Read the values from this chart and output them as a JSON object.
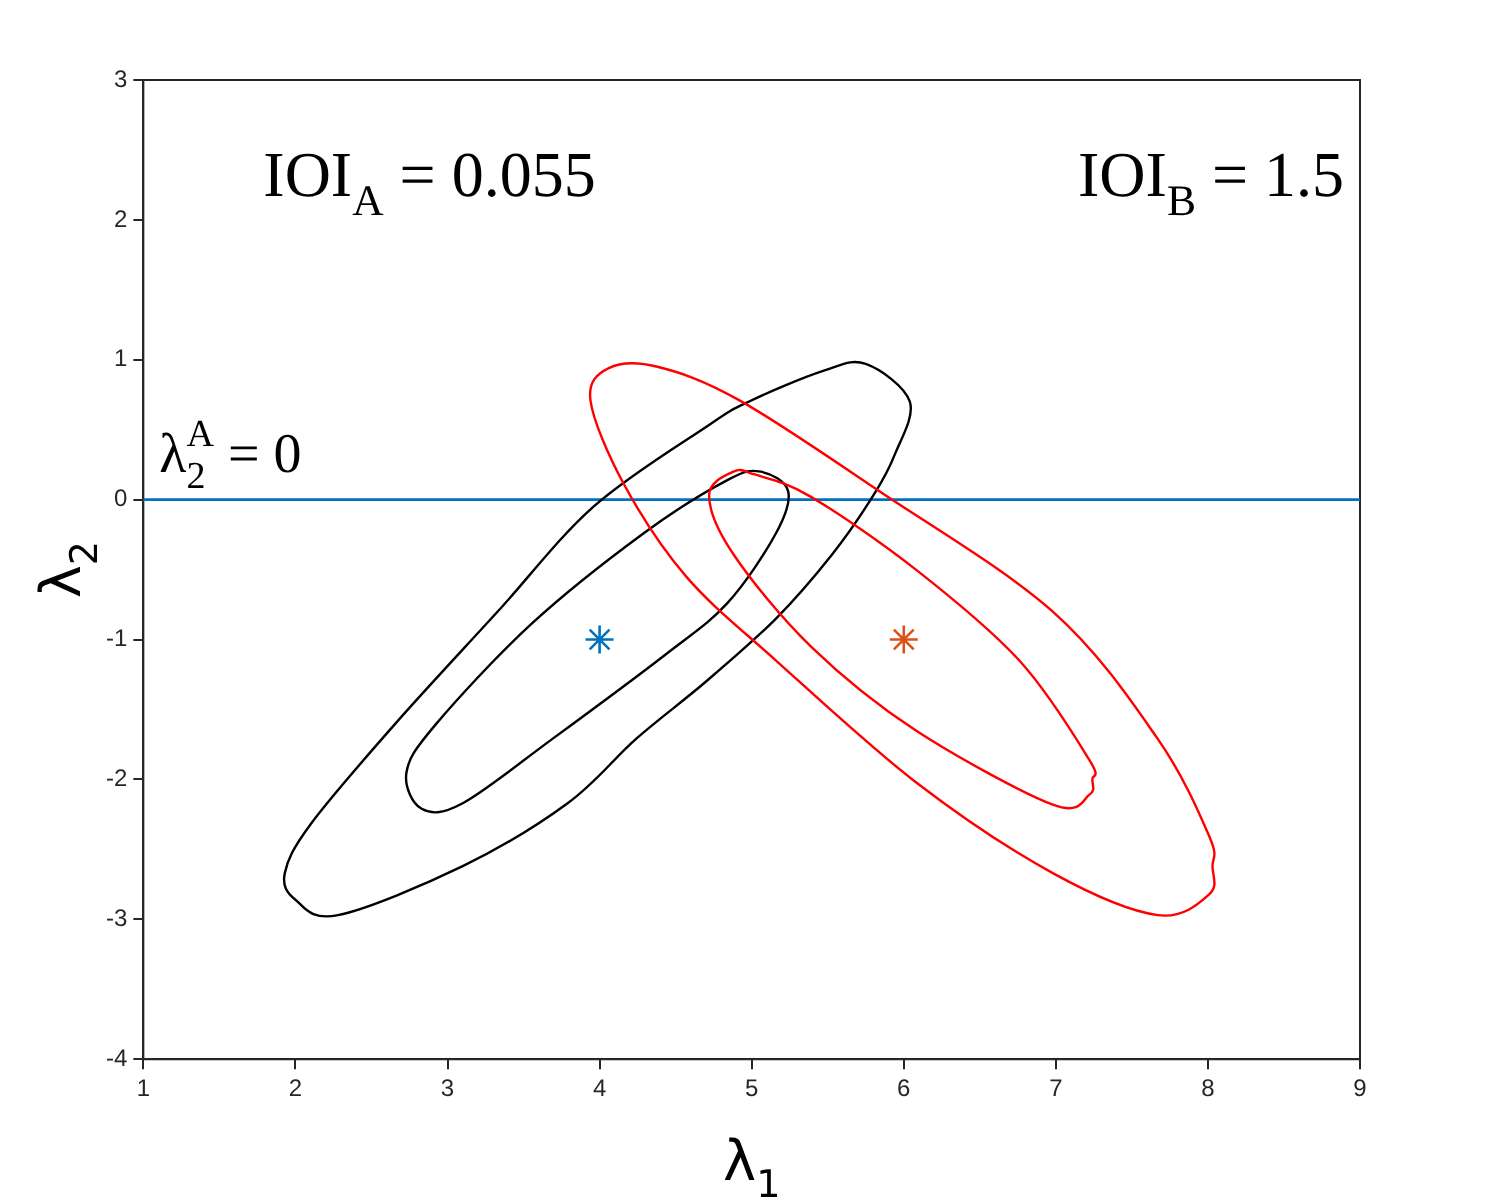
{
  "chart_data": {
    "type": "scatter",
    "xlabel": "λ$_{1}$",
    "ylabel": "λ$_{2}$",
    "xlim": [
      1,
      9
    ],
    "ylim": [
      -4,
      3
    ],
    "xticks": [
      1,
      2,
      3,
      4,
      5,
      6,
      7,
      8,
      9
    ],
    "yticks": [
      -4,
      -3,
      -2,
      -1,
      0,
      1,
      2,
      3
    ],
    "grid": false,
    "legend": false,
    "annotations": [
      "IOI$_{A}$ = 0.055",
      "IOI$_{B}$ = 1.5"
    ],
    "ref_lines": [
      {
        "axis": "y",
        "value": 0,
        "label": "λ$_{2}$$^{A}$ = 0",
        "color": "#0072bd"
      }
    ],
    "series": [
      {
        "color": "#0072bd",
        "marker": "cross",
        "x": [
          4
        ],
        "values": [
          -1
        ]
      },
      {
        "color": "#d95319",
        "marker": "cross",
        "x": [
          6
        ],
        "values": [
          -1
        ]
      }
    ]
  }
}
